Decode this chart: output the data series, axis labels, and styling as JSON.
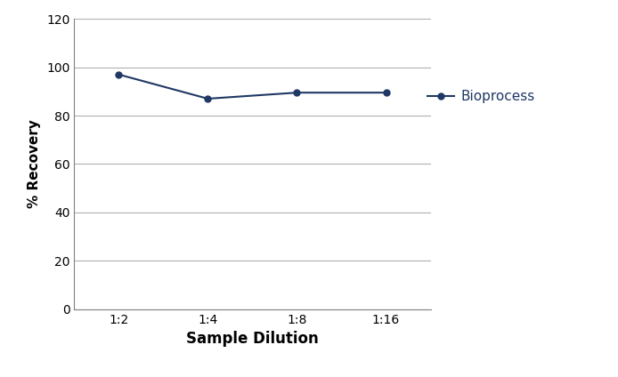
{
  "x_labels": [
    "1:2",
    "1:4",
    "1:8",
    "1:16"
  ],
  "x_values": [
    0,
    1,
    2,
    3
  ],
  "y_values": [
    97,
    87,
    89.5,
    89.5
  ],
  "line_color": "#1F3864",
  "marker_style": "o",
  "marker_size": 5,
  "line_width": 1.5,
  "ylabel": "% Recovery",
  "xlabel": "Sample Dilution",
  "ylim": [
    0,
    120
  ],
  "yticks": [
    0,
    20,
    40,
    60,
    80,
    100,
    120
  ],
  "legend_label": "Bioprocess",
  "legend_color": "#1F3864",
  "background_color": "#ffffff",
  "plot_bg_color": "#ffffff",
  "grid_color": "#b0b0b0",
  "ylabel_fontsize": 11,
  "xlabel_fontsize": 12,
  "tick_fontsize": 10,
  "legend_fontsize": 11,
  "spine_color": "#808080"
}
